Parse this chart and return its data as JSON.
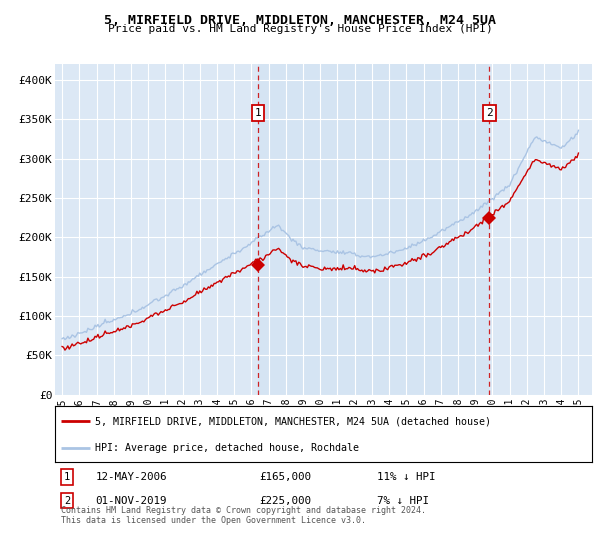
{
  "title": "5, MIRFIELD DRIVE, MIDDLETON, MANCHESTER, M24 5UA",
  "subtitle": "Price paid vs. HM Land Registry's House Price Index (HPI)",
  "ylabel_ticks": [
    "£0",
    "£50K",
    "£100K",
    "£150K",
    "£200K",
    "£250K",
    "£300K",
    "£350K",
    "£400K"
  ],
  "ylim": [
    0,
    420000
  ],
  "yticks": [
    0,
    50000,
    100000,
    150000,
    200000,
    250000,
    300000,
    350000,
    400000
  ],
  "legend_line1": "5, MIRFIELD DRIVE, MIDDLETON, MANCHESTER, M24 5UA (detached house)",
  "legend_line2": "HPI: Average price, detached house, Rochdale",
  "annotation1_date": "12-MAY-2006",
  "annotation1_price": "£165,000",
  "annotation1_hpi": "11% ↓ HPI",
  "annotation2_date": "01-NOV-2019",
  "annotation2_price": "£225,000",
  "annotation2_hpi": "7% ↓ HPI",
  "footnote": "Contains HM Land Registry data © Crown copyright and database right 2024.\nThis data is licensed under the Open Government Licence v3.0.",
  "hpi_color": "#aac4e4",
  "sale_color": "#cc0000",
  "plot_bg_color": "#dce8f5",
  "grid_color": "#ffffff",
  "vline_color": "#cc0000",
  "marker1_x": 2006.37,
  "marker1_y": 165000,
  "marker2_x": 2019.83,
  "marker2_y": 225000,
  "xlim_left": 1994.6,
  "xlim_right": 2025.8
}
